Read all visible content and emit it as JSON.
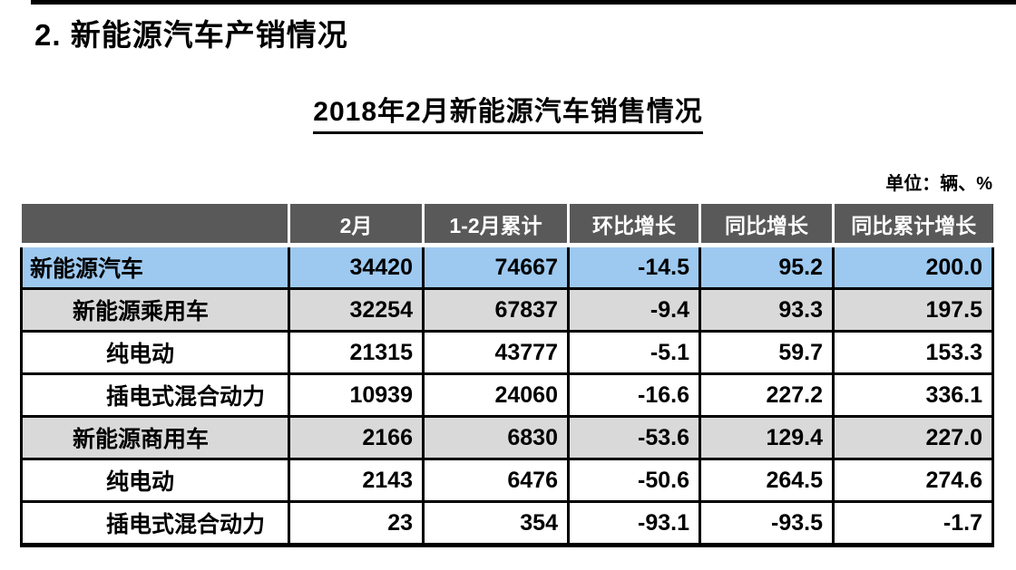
{
  "page": {
    "title": "2. 新能源汽车产销情况",
    "subtitle": "2018年2月新能源汽车销售情况",
    "unit_label": "单位：辆、%"
  },
  "table": {
    "headers": [
      "",
      "2月",
      "1-2月累计",
      "环比增长",
      "同比增长",
      "同比累计增长"
    ],
    "rows": [
      {
        "label": "新能源汽车",
        "indent": 0,
        "highlight": "blue",
        "values": [
          "34420",
          "74667",
          "-14.5",
          "95.2",
          "200.0"
        ]
      },
      {
        "label": "新能源乘用车",
        "indent": 1,
        "highlight": "gray",
        "values": [
          "32254",
          "67837",
          "-9.4",
          "93.3",
          "197.5"
        ]
      },
      {
        "label": "纯电动",
        "indent": 2,
        "highlight": "white",
        "values": [
          "21315",
          "43777",
          "-5.1",
          "59.7",
          "153.3"
        ]
      },
      {
        "label": "插电式混合动力",
        "indent": 2,
        "highlight": "white",
        "values": [
          "10939",
          "24060",
          "-16.6",
          "227.2",
          "336.1"
        ]
      },
      {
        "label": "新能源商用车",
        "indent": 1,
        "highlight": "gray",
        "values": [
          "2166",
          "6830",
          "-53.6",
          "129.4",
          "227.0"
        ]
      },
      {
        "label": "纯电动",
        "indent": 2,
        "highlight": "white",
        "values": [
          "2143",
          "6476",
          "-50.6",
          "264.5",
          "274.6"
        ]
      },
      {
        "label": "插电式混合动力",
        "indent": 2,
        "highlight": "white",
        "values": [
          "23",
          "354",
          "-93.1",
          "-93.5",
          "-1.7"
        ]
      }
    ]
  },
  "colors": {
    "header_bg": "#595959",
    "header_text": "#FFFFFF",
    "row_blue": "#9DC9F0",
    "row_gray": "#D9D9D9",
    "border": "#000000"
  }
}
